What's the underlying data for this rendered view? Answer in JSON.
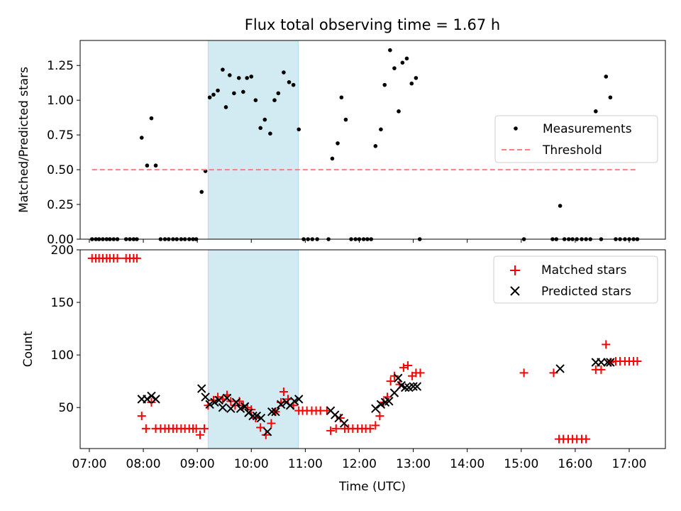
{
  "chart_data": [
    {
      "type": "scatter",
      "title": "Flux total observing time = 1.67 h",
      "xlabel": "",
      "ylabel": "Matched/Predicted stars",
      "xlim": [
        6.83,
        17.67
      ],
      "ylim": [
        0,
        1.43
      ],
      "yticks": [
        0,
        0.25,
        0.5,
        0.75,
        1.0,
        1.25
      ],
      "ytick_labels": [
        "0.00",
        "0.25",
        "0.50",
        "0.75",
        "1.00",
        "1.25"
      ],
      "shaded_span": [
        9.2,
        10.87
      ],
      "legend": {
        "position": "center-right",
        "entries": [
          "Measurements",
          "Threshold"
        ]
      },
      "series": [
        {
          "name": "Measurements",
          "marker": "dot",
          "color": "#000000",
          "points": [
            [
              7.05,
              0
            ],
            [
              7.12,
              0
            ],
            [
              7.18,
              0
            ],
            [
              7.25,
              0
            ],
            [
              7.32,
              0
            ],
            [
              7.38,
              0
            ],
            [
              7.45,
              0
            ],
            [
              7.52,
              0
            ],
            [
              7.68,
              0
            ],
            [
              7.75,
              0
            ],
            [
              7.82,
              0
            ],
            [
              7.88,
              0
            ],
            [
              7.97,
              0.73
            ],
            [
              8.07,
              0.53
            ],
            [
              8.15,
              0.87
            ],
            [
              8.23,
              0.53
            ],
            [
              8.32,
              0
            ],
            [
              8.4,
              0
            ],
            [
              8.47,
              0
            ],
            [
              8.55,
              0
            ],
            [
              8.62,
              0
            ],
            [
              8.7,
              0
            ],
            [
              8.77,
              0
            ],
            [
              8.85,
              0
            ],
            [
              8.92,
              0
            ],
            [
              8.98,
              0
            ],
            [
              9.08,
              0.34
            ],
            [
              9.15,
              0.49
            ],
            [
              9.23,
              1.02
            ],
            [
              9.3,
              1.04
            ],
            [
              9.38,
              1.07
            ],
            [
              9.47,
              1.22
            ],
            [
              9.53,
              0.95
            ],
            [
              9.6,
              1.18
            ],
            [
              9.68,
              1.05
            ],
            [
              9.77,
              1.16
            ],
            [
              9.85,
              1.06
            ],
            [
              9.92,
              1.16
            ],
            [
              10.0,
              1.17
            ],
            [
              10.08,
              1.0
            ],
            [
              10.17,
              0.8
            ],
            [
              10.25,
              0.86
            ],
            [
              10.35,
              0.76
            ],
            [
              10.43,
              1.0
            ],
            [
              10.5,
              1.05
            ],
            [
              10.6,
              1.2
            ],
            [
              10.7,
              1.13
            ],
            [
              10.78,
              1.11
            ],
            [
              10.88,
              0.79
            ],
            [
              10.97,
              0
            ],
            [
              11.05,
              0
            ],
            [
              11.13,
              0
            ],
            [
              11.22,
              0
            ],
            [
              11.43,
              0
            ],
            [
              11.5,
              0.58
            ],
            [
              11.6,
              0.69
            ],
            [
              11.67,
              1.02
            ],
            [
              11.75,
              0.86
            ],
            [
              11.85,
              0
            ],
            [
              11.93,
              0
            ],
            [
              12.0,
              0
            ],
            [
              12.08,
              0
            ],
            [
              12.15,
              0
            ],
            [
              12.22,
              0
            ],
            [
              12.3,
              0.67
            ],
            [
              12.4,
              0.79
            ],
            [
              12.47,
              1.11
            ],
            [
              12.57,
              1.36
            ],
            [
              12.65,
              1.23
            ],
            [
              12.73,
              0.92
            ],
            [
              12.8,
              1.27
            ],
            [
              12.88,
              1.3
            ],
            [
              12.97,
              1.12
            ],
            [
              13.05,
              1.16
            ],
            [
              13.12,
              0
            ],
            [
              15.05,
              0
            ],
            [
              15.58,
              0
            ],
            [
              15.65,
              0
            ],
            [
              15.72,
              0.24
            ],
            [
              15.8,
              0
            ],
            [
              15.88,
              0
            ],
            [
              15.95,
              0
            ],
            [
              16.03,
              0
            ],
            [
              16.12,
              0
            ],
            [
              16.2,
              0
            ],
            [
              16.28,
              0
            ],
            [
              16.38,
              0.92
            ],
            [
              16.48,
              0
            ],
            [
              16.57,
              1.17
            ],
            [
              16.65,
              1.02
            ],
            [
              16.75,
              0
            ],
            [
              16.83,
              0
            ],
            [
              16.92,
              0
            ],
            [
              17.0,
              0
            ],
            [
              17.08,
              0
            ],
            [
              17.15,
              0
            ]
          ]
        },
        {
          "name": "Threshold",
          "style": "dashed",
          "color": "#ff7f7f",
          "x": [
            7.05,
            17.15
          ],
          "y": [
            0.5,
            0.5
          ]
        }
      ]
    },
    {
      "type": "scatter",
      "title": "",
      "xlabel": "Time (UTC)",
      "ylabel": "Count",
      "xlim": [
        6.83,
        17.67
      ],
      "ylim": [
        11,
        200
      ],
      "xticks": [
        7,
        8,
        9,
        10,
        11,
        12,
        13,
        14,
        15,
        16,
        17
      ],
      "xtick_labels": [
        "07:00",
        "08:00",
        "09:00",
        "10:00",
        "11:00",
        "12:00",
        "13:00",
        "14:00",
        "15:00",
        "16:00",
        "17:00"
      ],
      "yticks": [
        50,
        100,
        150,
        200
      ],
      "ytick_labels": [
        "50",
        "100",
        "150",
        "200"
      ],
      "shaded_span": [
        9.2,
        10.87
      ],
      "legend": {
        "position": "top-right",
        "entries": [
          "Matched stars",
          "Predicted stars"
        ]
      },
      "series": [
        {
          "name": "Matched stars",
          "marker": "plus",
          "color": "#ff0000",
          "points": [
            [
              7.05,
              192
            ],
            [
              7.12,
              192
            ],
            [
              7.18,
              192
            ],
            [
              7.25,
              192
            ],
            [
              7.32,
              192
            ],
            [
              7.38,
              192
            ],
            [
              7.45,
              192
            ],
            [
              7.52,
              192
            ],
            [
              7.68,
              192
            ],
            [
              7.75,
              192
            ],
            [
              7.82,
              192
            ],
            [
              7.88,
              192
            ],
            [
              7.97,
              42
            ],
            [
              8.05,
              30
            ],
            [
              8.15,
              55
            ],
            [
              8.23,
              30
            ],
            [
              8.32,
              30
            ],
            [
              8.4,
              30
            ],
            [
              8.47,
              30
            ],
            [
              8.55,
              30
            ],
            [
              8.62,
              30
            ],
            [
              8.7,
              30
            ],
            [
              8.77,
              30
            ],
            [
              8.85,
              30
            ],
            [
              8.92,
              30
            ],
            [
              8.98,
              30
            ],
            [
              9.05,
              24
            ],
            [
              9.13,
              30
            ],
            [
              9.2,
              52
            ],
            [
              9.3,
              57
            ],
            [
              9.38,
              60
            ],
            [
              9.47,
              58
            ],
            [
              9.55,
              62
            ],
            [
              9.62,
              56
            ],
            [
              9.7,
              52
            ],
            [
              9.78,
              56
            ],
            [
              9.85,
              52
            ],
            [
              9.93,
              50
            ],
            [
              10.0,
              48
            ],
            [
              10.08,
              40
            ],
            [
              10.17,
              31
            ],
            [
              10.27,
              24
            ],
            [
              10.37,
              35
            ],
            [
              10.45,
              46
            ],
            [
              10.55,
              55
            ],
            [
              10.6,
              65
            ],
            [
              10.68,
              58
            ],
            [
              10.78,
              52
            ],
            [
              10.88,
              47
            ],
            [
              10.95,
              47
            ],
            [
              11.03,
              47
            ],
            [
              11.12,
              47
            ],
            [
              11.2,
              47
            ],
            [
              11.28,
              47
            ],
            [
              11.4,
              47
            ],
            [
              11.47,
              28
            ],
            [
              11.57,
              30
            ],
            [
              11.65,
              40
            ],
            [
              11.73,
              30
            ],
            [
              11.8,
              30
            ],
            [
              11.88,
              30
            ],
            [
              11.97,
              30
            ],
            [
              12.05,
              30
            ],
            [
              12.12,
              30
            ],
            [
              12.2,
              30
            ],
            [
              12.3,
              33
            ],
            [
              12.38,
              42
            ],
            [
              12.45,
              55
            ],
            [
              12.52,
              60
            ],
            [
              12.58,
              75
            ],
            [
              12.65,
              80
            ],
            [
              12.75,
              72
            ],
            [
              12.82,
              88
            ],
            [
              12.9,
              90
            ],
            [
              12.98,
              80
            ],
            [
              13.05,
              83
            ],
            [
              13.13,
              83
            ],
            [
              15.05,
              83
            ],
            [
              15.6,
              83
            ],
            [
              15.7,
              20
            ],
            [
              15.78,
              20
            ],
            [
              15.87,
              20
            ],
            [
              15.95,
              20
            ],
            [
              16.03,
              20
            ],
            [
              16.12,
              20
            ],
            [
              16.2,
              20
            ],
            [
              16.38,
              86
            ],
            [
              16.48,
              86
            ],
            [
              16.57,
              110
            ],
            [
              16.65,
              93
            ],
            [
              16.75,
              94
            ],
            [
              16.83,
              94
            ],
            [
              16.92,
              94
            ],
            [
              17.0,
              94
            ],
            [
              17.08,
              94
            ],
            [
              17.15,
              94
            ]
          ]
        },
        {
          "name": "Predicted stars",
          "marker": "x",
          "color": "#000000",
          "points": [
            [
              7.97,
              58
            ],
            [
              8.07,
              58
            ],
            [
              8.15,
              61
            ],
            [
              8.23,
              58
            ],
            [
              9.08,
              68
            ],
            [
              9.15,
              60
            ],
            [
              9.23,
              53
            ],
            [
              9.32,
              55
            ],
            [
              9.4,
              57
            ],
            [
              9.47,
              50
            ],
            [
              9.55,
              59
            ],
            [
              9.62,
              49
            ],
            [
              9.72,
              55
            ],
            [
              9.8,
              49
            ],
            [
              9.88,
              51
            ],
            [
              9.95,
              45
            ],
            [
              10.03,
              42
            ],
            [
              10.1,
              42
            ],
            [
              10.18,
              40
            ],
            [
              10.3,
              27
            ],
            [
              10.38,
              46
            ],
            [
              10.45,
              46
            ],
            [
              10.55,
              53
            ],
            [
              10.65,
              55
            ],
            [
              10.72,
              52
            ],
            [
              10.8,
              56
            ],
            [
              10.88,
              58
            ],
            [
              11.47,
              47
            ],
            [
              11.55,
              43
            ],
            [
              11.62,
              40
            ],
            [
              11.72,
              35
            ],
            [
              12.3,
              49
            ],
            [
              12.4,
              53
            ],
            [
              12.48,
              55
            ],
            [
              12.55,
              56
            ],
            [
              12.65,
              64
            ],
            [
              12.72,
              78
            ],
            [
              12.78,
              71
            ],
            [
              12.85,
              69
            ],
            [
              12.92,
              69
            ],
            [
              13.0,
              70
            ],
            [
              13.07,
              70
            ],
            [
              15.72,
              87
            ],
            [
              16.38,
              93
            ],
            [
              16.48,
              93
            ],
            [
              16.6,
              93
            ],
            [
              16.65,
              93
            ]
          ]
        }
      ]
    }
  ]
}
